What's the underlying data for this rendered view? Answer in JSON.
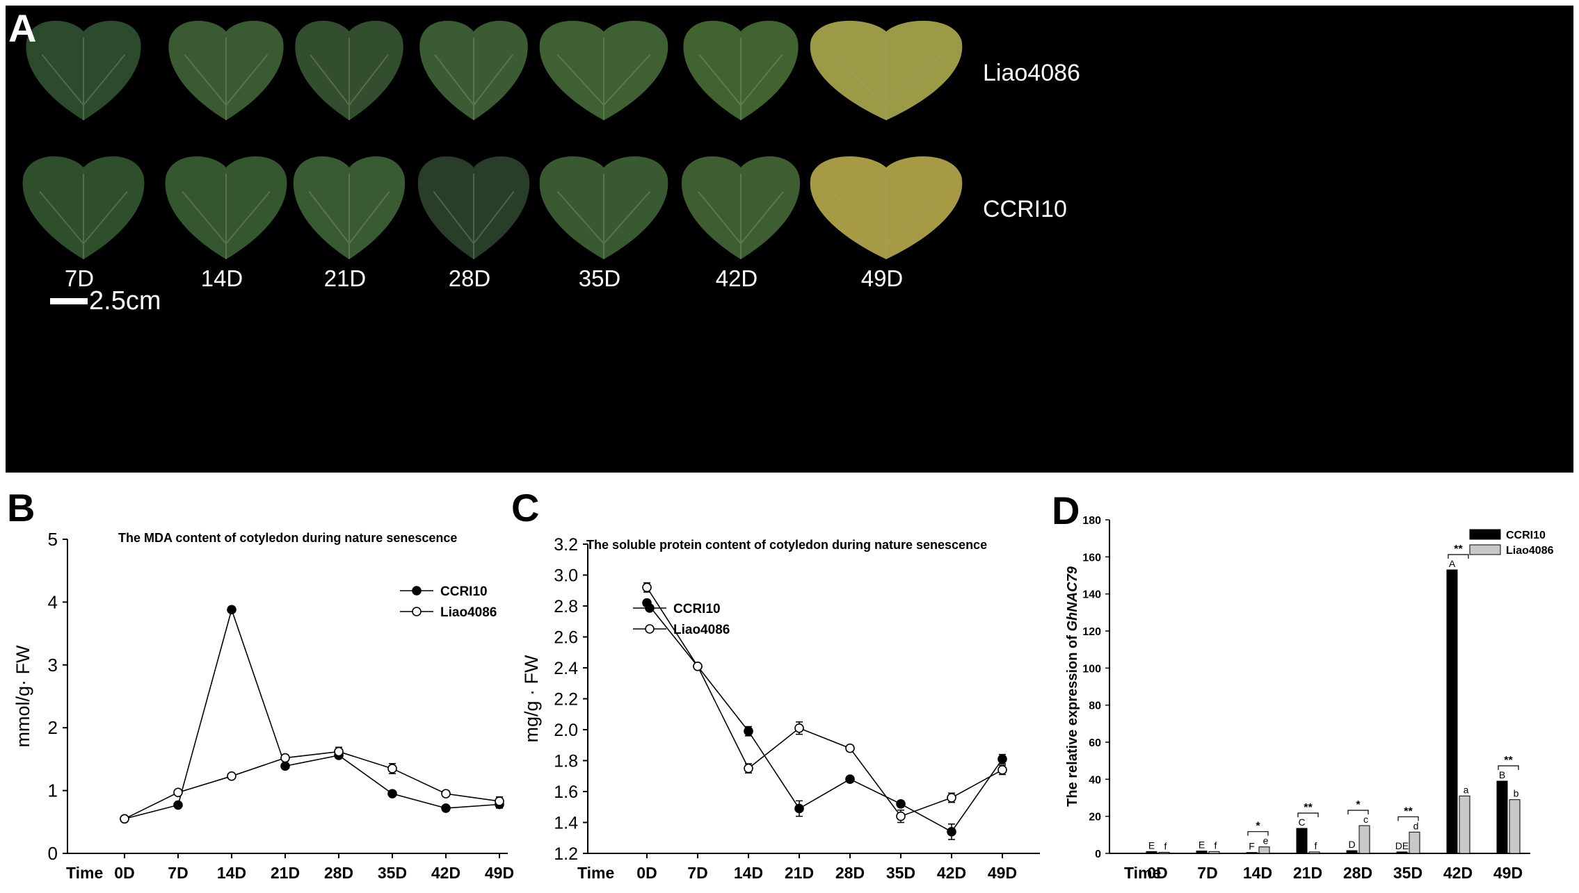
{
  "panel_a": {
    "letter": "A",
    "rows": [
      "Liao4086",
      "CCRI10"
    ],
    "days": [
      "7D",
      "14D",
      "21D",
      "28D",
      "35D",
      "42D",
      "49D"
    ],
    "scale_label": "2.5cm",
    "leaf_colors_top": [
      "#2c4a2c",
      "#3a5a32",
      "#334e2e",
      "#3b5c33",
      "#3f6033",
      "#40632f",
      "#9c9a46"
    ],
    "leaf_colors_bottom": [
      "#2f4e2c",
      "#345730",
      "#395b31",
      "#283e28",
      "#395a30",
      "#3e5e31",
      "#a69a44"
    ]
  },
  "panel_labels": {
    "b": "B",
    "c": "C",
    "d": "D"
  },
  "chart_data": [
    {
      "type": "line",
      "title": "The MDA content  of cotyledon during nature senescence",
      "xlabel": "Time",
      "ylabel": "mmol/g· FW",
      "categories": [
        "0D",
        "7D",
        "14D",
        "21D",
        "28D",
        "35D",
        "42D",
        "49D"
      ],
      "ylim": [
        0,
        5
      ],
      "yticks": [
        0,
        1,
        2,
        3,
        4,
        5
      ],
      "ytick_labels": [
        "0",
        "1",
        "2",
        "3",
        "4",
        "5"
      ],
      "legend_position": "top-right",
      "series": [
        {
          "name": "CCRI10",
          "marker": "filled",
          "values": [
            0.55,
            0.77,
            3.88,
            1.39,
            1.56,
            0.95,
            0.72,
            0.78
          ],
          "errors": [
            0.03,
            0.03,
            0.04,
            0.04,
            0.04,
            0.04,
            0.04,
            0.06
          ]
        },
        {
          "name": "Liao4086",
          "marker": "open",
          "values": [
            0.55,
            0.97,
            1.23,
            1.52,
            1.62,
            1.35,
            0.95,
            0.83
          ],
          "errors": [
            0.03,
            0.03,
            0.04,
            0.05,
            0.07,
            0.08,
            0.04,
            0.07
          ]
        }
      ]
    },
    {
      "type": "line",
      "title": "The soluble protein content  of cotyledon during nature senescence",
      "xlabel": "Time",
      "ylabel": "mg/g · FW",
      "categories": [
        "0D",
        "7D",
        "14D",
        "21D",
        "28D",
        "35D",
        "42D",
        "49D"
      ],
      "ylim": [
        1.2,
        3.2
      ],
      "yticks": [
        1.2,
        1.4,
        1.6,
        1.8,
        2.0,
        2.2,
        2.4,
        2.6,
        2.8,
        3.0,
        3.2
      ],
      "ytick_labels": [
        "1.2",
        "1.4",
        "1.6",
        "1.8",
        "2.0",
        "2.2",
        "2.4",
        "2.6",
        "2.8",
        "3.0",
        "3.2"
      ],
      "legend_position": "top-right",
      "series": [
        {
          "name": "CCRI10",
          "marker": "filled",
          "values": [
            2.82,
            2.41,
            1.99,
            1.49,
            1.68,
            1.52,
            1.34,
            1.81
          ],
          "errors": [
            0.02,
            0.01,
            0.03,
            0.05,
            0.02,
            0.02,
            0.05,
            0.03
          ]
        },
        {
          "name": "Liao4086",
          "marker": "open",
          "values": [
            2.92,
            2.41,
            1.75,
            2.01,
            1.88,
            1.44,
            1.56,
            1.74
          ],
          "errors": [
            0.03,
            0.01,
            0.03,
            0.04,
            0.02,
            0.04,
            0.03,
            0.03
          ]
        }
      ]
    },
    {
      "type": "bar",
      "title": "",
      "xlabel": "Time",
      "ylabel_prefix": "The relative expression of ",
      "ylabel_gene": "GhNAC79",
      "categories": [
        "0D",
        "7D",
        "14D",
        "21D",
        "28D",
        "35D",
        "42D",
        "49D"
      ],
      "ylim": [
        0,
        180
      ],
      "yticks": [
        0,
        20,
        40,
        60,
        80,
        100,
        120,
        140,
        160,
        180
      ],
      "ytick_labels": [
        "0",
        "20",
        "40",
        "60",
        "80",
        "100",
        "120",
        "140",
        "160",
        "180"
      ],
      "legend_position": "top-right",
      "series": [
        {
          "name": "CCRI10",
          "color": "#000000",
          "values": [
            1.0,
            1.3,
            0.5,
            13.5,
            1.5,
            0.8,
            153,
            39
          ],
          "letters": [
            "E",
            "E",
            "F",
            "C",
            "D",
            "DE",
            "A",
            "B"
          ]
        },
        {
          "name": "Liao4086",
          "color": "#c8c8c8",
          "values": [
            0.6,
            1.0,
            3.5,
            0.8,
            15,
            11.5,
            31,
            29
          ],
          "letters": [
            "f",
            "f",
            "e",
            "f",
            "c",
            "d",
            "a",
            "b"
          ]
        }
      ],
      "significance": [
        "",
        "",
        "*",
        "**",
        "*",
        "**",
        "**",
        "**"
      ]
    }
  ]
}
